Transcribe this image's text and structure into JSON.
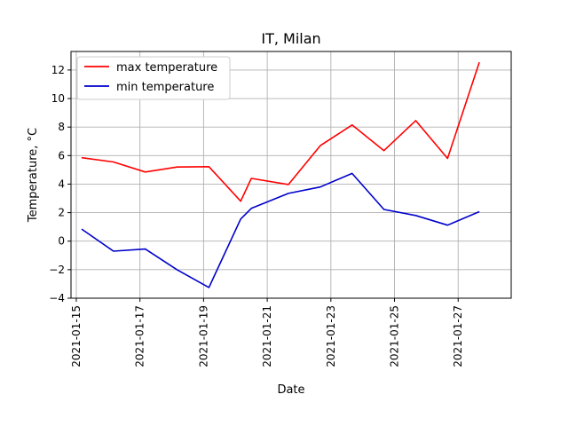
{
  "chart_data": {
    "type": "line",
    "title": "IT, Milan",
    "xlabel": "Date",
    "ylabel": "Temperature, °C",
    "x_axis": "date",
    "xlim": [
      "2021-01-14T20:00",
      "2021-01-28T16:00"
    ],
    "xticks": [
      "2021-01-15",
      "2021-01-17",
      "2021-01-19",
      "2021-01-21",
      "2021-01-23",
      "2021-01-25",
      "2021-01-27"
    ],
    "ylim": [
      -4,
      13.3
    ],
    "yticks": [
      -4,
      -2,
      0,
      2,
      4,
      6,
      8,
      10,
      12
    ],
    "grid": true,
    "legend_position": "top-left",
    "series": [
      {
        "name": "max temperature",
        "color": "#ff0000",
        "points": [
          {
            "x": "2021-01-15T04:00",
            "y": 5.85
          },
          {
            "x": "2021-01-16T04:00",
            "y": 5.55
          },
          {
            "x": "2021-01-17T04:00",
            "y": 4.85
          },
          {
            "x": "2021-01-18T04:00",
            "y": 5.2
          },
          {
            "x": "2021-01-19T04:00",
            "y": 5.22
          },
          {
            "x": "2021-01-20T04:00",
            "y": 2.8
          },
          {
            "x": "2021-01-20T12:00",
            "y": 4.4
          },
          {
            "x": "2021-01-21T16:00",
            "y": 3.97
          },
          {
            "x": "2021-01-22T16:00",
            "y": 6.7
          },
          {
            "x": "2021-01-23T16:00",
            "y": 8.15
          },
          {
            "x": "2021-01-24T16:00",
            "y": 6.35
          },
          {
            "x": "2021-01-25T16:00",
            "y": 8.45
          },
          {
            "x": "2021-01-26T16:00",
            "y": 5.8
          },
          {
            "x": "2021-01-27T16:00",
            "y": 12.55
          }
        ]
      },
      {
        "name": "min temperature",
        "color": "#0000cc",
        "points": [
          {
            "x": "2021-01-15T04:00",
            "y": 0.85
          },
          {
            "x": "2021-01-16T04:00",
            "y": -0.7
          },
          {
            "x": "2021-01-17T04:00",
            "y": -0.55
          },
          {
            "x": "2021-01-18T04:00",
            "y": -2.0
          },
          {
            "x": "2021-01-19T04:00",
            "y": -3.25
          },
          {
            "x": "2021-01-20T04:00",
            "y": 1.55
          },
          {
            "x": "2021-01-20T12:00",
            "y": 2.3
          },
          {
            "x": "2021-01-21T16:00",
            "y": 3.35
          },
          {
            "x": "2021-01-22T16:00",
            "y": 3.8
          },
          {
            "x": "2021-01-23T16:00",
            "y": 4.75
          },
          {
            "x": "2021-01-24T16:00",
            "y": 2.22
          },
          {
            "x": "2021-01-25T16:00",
            "y": 1.8
          },
          {
            "x": "2021-01-26T16:00",
            "y": 1.12
          },
          {
            "x": "2021-01-27T16:00",
            "y": 2.07
          }
        ]
      }
    ]
  }
}
